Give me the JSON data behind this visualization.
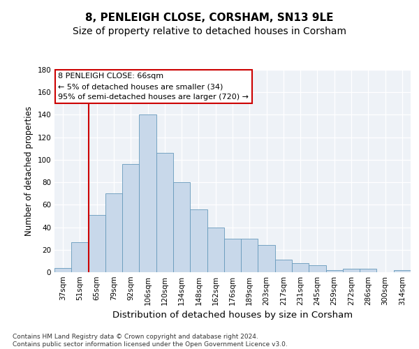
{
  "title": "8, PENLEIGH CLOSE, CORSHAM, SN13 9LE",
  "subtitle": "Size of property relative to detached houses in Corsham",
  "xlabel": "Distribution of detached houses by size in Corsham",
  "ylabel": "Number of detached properties",
  "categories": [
    "37sqm",
    "51sqm",
    "65sqm",
    "79sqm",
    "92sqm",
    "106sqm",
    "120sqm",
    "134sqm",
    "148sqm",
    "162sqm",
    "176sqm",
    "189sqm",
    "203sqm",
    "217sqm",
    "231sqm",
    "245sqm",
    "259sqm",
    "272sqm",
    "286sqm",
    "300sqm",
    "314sqm"
  ],
  "values": [
    4,
    27,
    51,
    70,
    96,
    140,
    106,
    80,
    56,
    40,
    30,
    30,
    24,
    11,
    8,
    6,
    2,
    3,
    3,
    0,
    2
  ],
  "bar_color": "#c8d8ea",
  "bar_edge_color": "#6699bb",
  "vline_index": 2,
  "vline_color": "#cc0000",
  "annotation_text": "8 PENLEIGH CLOSE: 66sqm\n← 5% of detached houses are smaller (34)\n95% of semi-detached houses are larger (720) →",
  "annotation_box_color": "#cc0000",
  "ylim": [
    0,
    180
  ],
  "yticks": [
    0,
    20,
    40,
    60,
    80,
    100,
    120,
    140,
    160,
    180
  ],
  "title_fontsize": 11,
  "subtitle_fontsize": 10,
  "xlabel_fontsize": 9.5,
  "ylabel_fontsize": 8.5,
  "tick_fontsize": 7.5,
  "annotation_fontsize": 8,
  "footer_text": "Contains HM Land Registry data © Crown copyright and database right 2024.\nContains public sector information licensed under the Open Government Licence v3.0.",
  "footer_fontsize": 6.5,
  "background_color": "#eef2f7",
  "grid_color": "#ffffff",
  "fig_bg": "#ffffff"
}
